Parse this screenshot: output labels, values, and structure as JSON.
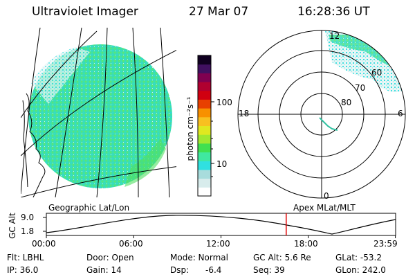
{
  "header": {
    "instrument": "Ultraviolet Imager",
    "date": "27 Mar 07",
    "time": "16:28:36 UT"
  },
  "colorbar": {
    "unit_label": "photon cm⁻²s⁻¹",
    "ticks": [
      "100",
      "10"
    ],
    "colors": [
      "#ffffff",
      "#d8ecec",
      "#a8dcdc",
      "#30e0e0",
      "#40e8a0",
      "#40e050",
      "#a0e830",
      "#e0e820",
      "#f8c020",
      "#f89000",
      "#e84000",
      "#d00010",
      "#b00030",
      "#800050",
      "#401060",
      "#100020"
    ]
  },
  "left_panel": {
    "label": "Geographic Lat/Lon"
  },
  "right_panel": {
    "label": "Apex MLat/MLT",
    "clock_labels": {
      "top": "12",
      "left": "18",
      "right": "6",
      "bottom": "0"
    },
    "lat_labels": [
      "60",
      "70",
      "80"
    ]
  },
  "altitude_plot": {
    "ylabel": "GC Alt",
    "yticks": [
      "9.0",
      "1.8"
    ],
    "xticks": [
      "00:00",
      "06:00",
      "12:00",
      "18:00",
      "23:59"
    ],
    "marker_time_hours": 16.48,
    "marker_color": "#e00000"
  },
  "info": {
    "flt": "Flt: LBHL",
    "ip": "IP: 36.0",
    "door": "Door: Open",
    "gain": "Gain: 14",
    "mode": "Mode: Normal",
    "dsp_label": "Dsp:",
    "dsp_value": "-6.4",
    "gc_alt": "GC Alt: 5.6 Re",
    "seq": "Seq: 39",
    "glat": "GLat: -53.2",
    "glon": "GLon: 242.0"
  }
}
